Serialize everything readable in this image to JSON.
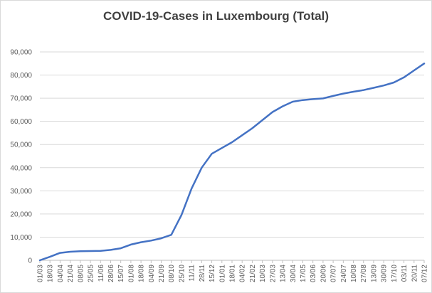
{
  "chart_data": {
    "type": "line",
    "title": "COVID-19-Cases in Luxembourg (Total)",
    "xlabel": "",
    "ylabel": "",
    "ylim": [
      0,
      90000
    ],
    "yticks": [
      0,
      10000,
      20000,
      30000,
      40000,
      50000,
      60000,
      70000,
      80000,
      90000
    ],
    "ytick_labels": [
      "0",
      "10,000",
      "20,000",
      "30,000",
      "40,000",
      "50,000",
      "60,000",
      "70,000",
      "80,000",
      "90,000"
    ],
    "xtick_labels": [
      "01/03",
      "18/03",
      "04/04",
      "21/04",
      "08/05",
      "25/05",
      "11/06",
      "28/06",
      "15/07",
      "01/08",
      "18/08",
      "04/09",
      "21/09",
      "08/10",
      "25/10",
      "11/11",
      "28/11",
      "15/12",
      "01/01",
      "18/01",
      "04/02",
      "21/02",
      "10/03",
      "27/03",
      "13/04",
      "30/04",
      "17/05",
      "03/06",
      "20/06",
      "07/07",
      "24/07",
      "10/08",
      "27/08",
      "13/09",
      "30/09",
      "17/10",
      "03/11",
      "20/11",
      "07/12"
    ],
    "grid": true,
    "legend": "none",
    "series": [
      {
        "color": "#4472c4",
        "x": [
          "01/03",
          "18/03",
          "04/04",
          "21/04",
          "08/05",
          "25/05",
          "11/06",
          "28/06",
          "15/07",
          "01/08",
          "18/08",
          "04/09",
          "21/09",
          "08/10",
          "15/10",
          "20/10",
          "25/10",
          "01/11",
          "05/11",
          "11/11",
          "18/11",
          "28/11",
          "08/12",
          "15/12",
          "01/01",
          "18/01",
          "04/02",
          "21/02",
          "10/03",
          "27/03",
          "13/04",
          "30/04",
          "17/05",
          "03/06",
          "20/06",
          "07/07",
          "24/07",
          "10/08",
          "27/08",
          "13/09",
          "30/09",
          "17/10",
          "03/11",
          "20/11",
          "30/11",
          "07/12"
        ],
        "values": [
          0,
          1500,
          3200,
          3700,
          3900,
          4000,
          4100,
          4500,
          5200,
          6800,
          7800,
          8500,
          9500,
          11000,
          12500,
          15000,
          19500,
          25000,
          28500,
          31000,
          34500,
          40000,
          44000,
          46000,
          48500,
          51000,
          54000,
          57000,
          60500,
          64000,
          66500,
          68500,
          69200,
          69600,
          69900,
          71000,
          72000,
          72800,
          73500,
          74500,
          75500,
          76800,
          79000,
          82000,
          84500,
          85000
        ]
      }
    ]
  }
}
